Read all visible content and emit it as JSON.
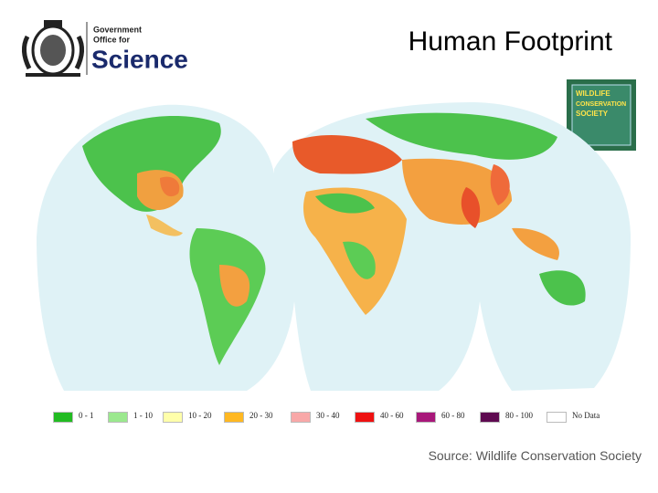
{
  "header": {
    "logo_lines": [
      "Government",
      "Office for",
      "Science"
    ],
    "title": "Human Footprint"
  },
  "partner_logo": {
    "lines": [
      "WILDLIFE",
      "CONSERVATION",
      "SOCIETY"
    ]
  },
  "map": {
    "legend": [
      {
        "label": "0 - 1",
        "color": "#22bb22"
      },
      {
        "label": "1 - 10",
        "color": "#9be88e"
      },
      {
        "label": "10 - 20",
        "color": "#ffffaa"
      },
      {
        "label": "20 - 30",
        "color": "#ffb822"
      },
      {
        "label": "30 - 40",
        "color": "#f8a8a8"
      },
      {
        "label": "40 - 60",
        "color": "#ee1111"
      },
      {
        "label": "60 - 80",
        "color": "#a8187a"
      },
      {
        "label": "80 - 100",
        "color": "#5e0a50"
      },
      {
        "label": "No Data",
        "color": "#ffffff"
      }
    ]
  },
  "source": "Source: Wildlife Conservation Society"
}
